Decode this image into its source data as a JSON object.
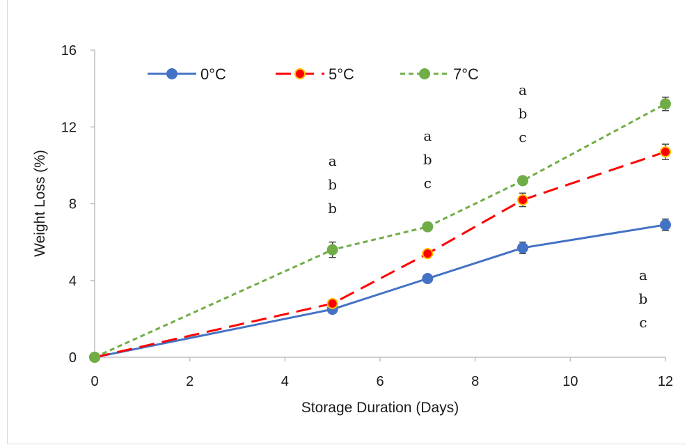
{
  "chart_data": {
    "type": "line",
    "xlabel": "Storage Duration (Days)",
    "ylabel": "Weight Loss (%)",
    "xlim": [
      0,
      12
    ],
    "ylim": [
      0,
      16
    ],
    "xticks": [
      0,
      2,
      4,
      6,
      8,
      10,
      12
    ],
    "yticks": [
      0,
      4,
      8,
      12,
      16
    ],
    "grid": false,
    "legend_position": "top",
    "series": [
      {
        "name": "0°C",
        "color": "#4472c4",
        "marker_fill": "#4472c4",
        "marker_edge": "#4472c4",
        "dash": "solid",
        "x": [
          0,
          5,
          7,
          9,
          12
        ],
        "y": [
          0,
          2.5,
          4.1,
          5.7,
          6.9
        ],
        "error": [
          0,
          0.15,
          0.15,
          0.3,
          0.3
        ]
      },
      {
        "name": "5°C",
        "color": "#ff0000",
        "marker_fill": "#ff0000",
        "marker_edge": "#ffc000",
        "dash": "long-dash",
        "x": [
          0,
          5,
          7,
          9,
          12
        ],
        "y": [
          0,
          2.8,
          5.4,
          8.2,
          10.7
        ],
        "error": [
          0,
          0.15,
          0.2,
          0.35,
          0.4
        ]
      },
      {
        "name": "7°C",
        "color": "#70ad47",
        "marker_fill": "#70ad47",
        "marker_edge": "#70ad47",
        "dash": "short-dash",
        "x": [
          0,
          5,
          7,
          9,
          12
        ],
        "y": [
          0,
          5.6,
          6.8,
          9.2,
          13.2
        ],
        "error": [
          0,
          0.4,
          0.2,
          0.2,
          0.35
        ]
      }
    ],
    "annotations": [
      {
        "x": 5,
        "letters": [
          "a",
          "b",
          "b"
        ]
      },
      {
        "x": 7,
        "letters": [
          "a",
          "b",
          "c"
        ]
      },
      {
        "x": 9,
        "letters": [
          "a",
          "b",
          "c"
        ]
      },
      {
        "x": 12,
        "letters": [
          "a",
          "b",
          "c"
        ]
      }
    ]
  }
}
